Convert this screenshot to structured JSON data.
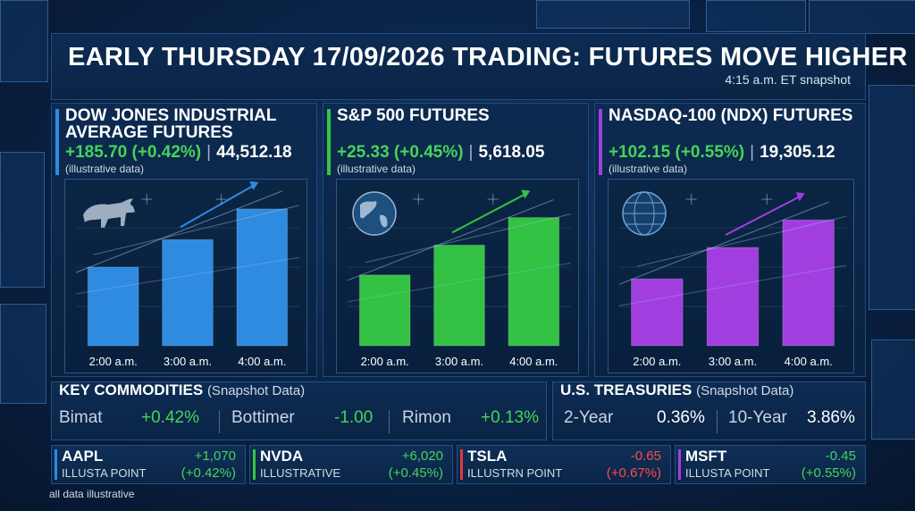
{
  "header": {
    "title": "EARLY THURSDAY 17/09/2026 TRADING: FUTURES MOVE HIGHER",
    "subtitle": "4:15 a.m. ET snapshot"
  },
  "panels": [
    {
      "title": "DOW JONES INDUSTRIAL AVERAGE FUTURES",
      "change": "+185.70 (+0.42%)",
      "level": "44,512.18",
      "note": "(illustrative data)",
      "accent": "#2e8be0",
      "icon": "bull-icon"
    },
    {
      "title": "S&P 500 FUTURES",
      "change": "+25.33 (+0.45%)",
      "level": "5,618.05",
      "note": "(illustrative data)",
      "accent": "#37c646",
      "icon": "globe-icon"
    },
    {
      "title": "NASDAQ-100 (NDX) FUTURES",
      "change": "+102.15 (+0.55%)",
      "level": "19,305.12",
      "note": "(illustrative data)",
      "accent": "#a23ee0",
      "icon": "digital-globe-icon"
    }
  ],
  "chart_data": [
    {
      "type": "bar",
      "title": "DOW JONES INDUSTRIAL AVERAGE FUTURES",
      "categories": [
        "2:00 a.m.",
        "3:00 a.m.",
        "4:00 a.m."
      ],
      "values": [
        1.0,
        1.35,
        1.74
      ],
      "ylim": [
        0,
        2
      ],
      "color": "#2e8be0"
    },
    {
      "type": "bar",
      "title": "S&P 500 FUTURES",
      "categories": [
        "2:00 a.m.",
        "3:00 a.m.",
        "4:00 a.m."
      ],
      "values": [
        0.9,
        1.28,
        1.63
      ],
      "ylim": [
        0,
        2
      ],
      "color": "#33c243"
    },
    {
      "type": "bar",
      "title": "NASDAQ-100 (NDX) FUTURES",
      "categories": [
        "2:00 a.m.",
        "3:00 a.m.",
        "4:00 a.m."
      ],
      "values": [
        0.85,
        1.25,
        1.6
      ],
      "ylim": [
        0,
        2
      ],
      "color": "#a23ee0"
    }
  ],
  "commodities": {
    "title": "KEY COMMODITIES",
    "sub": "(Snapshot Data)",
    "items": [
      {
        "name": "Bimat",
        "value": "+0.42%",
        "tone": "green"
      },
      {
        "name": "Bottimer",
        "value": "-1.00",
        "tone": "green"
      },
      {
        "name": "Rimon",
        "value": "+0.13%",
        "tone": "green"
      }
    ]
  },
  "treasuries": {
    "title": "U.S. TREASURIES",
    "sub": "(Snapshot Data)",
    "items": [
      {
        "name": "2-Year",
        "value": "0.36%"
      },
      {
        "name": "10-Year",
        "value": "3.86%"
      }
    ]
  },
  "tickers": [
    {
      "symbol": "AAPL",
      "label": "ILLUSTA POINT",
      "v1": "+1,070",
      "v2": "(+0.42%)",
      "tone": "green",
      "accent": "#2e8be0"
    },
    {
      "symbol": "NVDA",
      "label": "ILLUSTRATIVE",
      "v1": "+6,020",
      "v2": "(+0.45%)",
      "tone": "green",
      "accent": "#37c646"
    },
    {
      "symbol": "TSLA",
      "label": "ILLUSTRN POINT",
      "v1": "-0.65",
      "v2": "(+0.67%)",
      "tone": "red",
      "accent": "#e0393b"
    },
    {
      "symbol": "MSFT",
      "label": "ILLUSTA POINT",
      "v1": "-0.45",
      "v2": "(+0.55%)",
      "tone": "green",
      "accent": "#a23ee0"
    }
  ],
  "footer": "all data illustrative",
  "colors": {
    "up": "#47d35a",
    "down": "#ff4a4a",
    "background": "#0a2448"
  }
}
